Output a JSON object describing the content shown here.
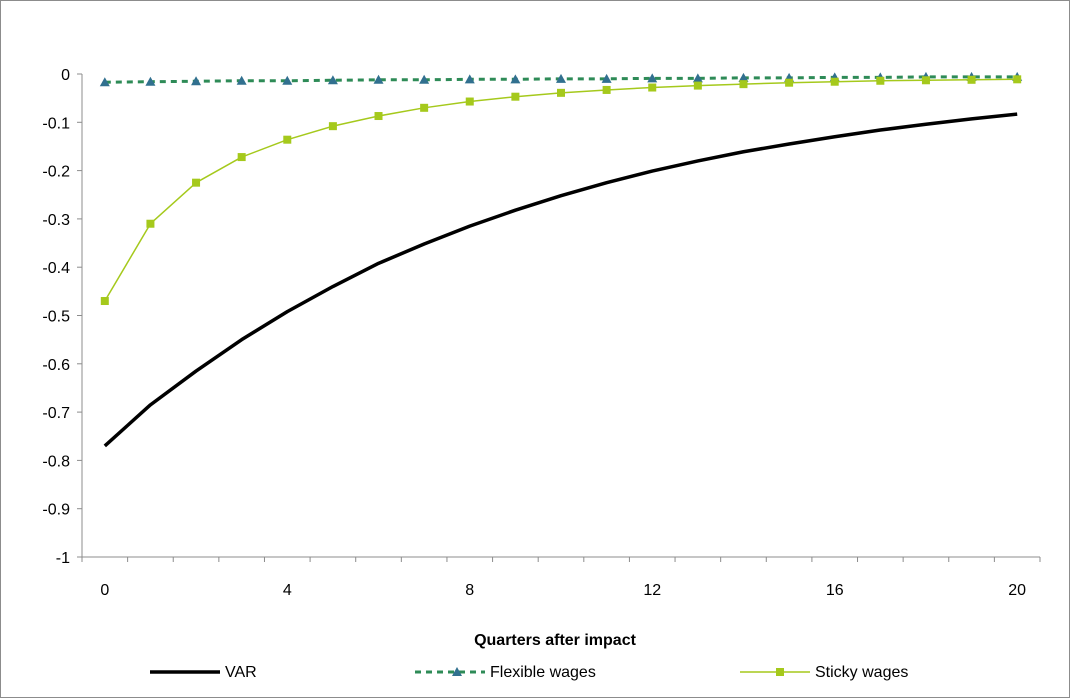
{
  "chart_data": {
    "type": "line",
    "title": "",
    "xlabel": "Quarters after impact",
    "ylabel": "",
    "x": [
      0,
      1,
      2,
      3,
      4,
      5,
      6,
      7,
      8,
      9,
      10,
      11,
      12,
      13,
      14,
      15,
      16,
      17,
      18,
      19,
      20
    ],
    "xticks": [
      0,
      4,
      8,
      12,
      16,
      20
    ],
    "xlim": [
      0,
      20
    ],
    "ylim": [
      -1,
      0
    ],
    "yticks": [
      0,
      -0.1,
      -0.2,
      -0.3,
      -0.4,
      -0.5,
      -0.6,
      -0.7,
      -0.8,
      -0.9,
      -1
    ],
    "ytick_labels": [
      "0",
      "-0.1",
      "-0.2",
      "-0.3",
      "-0.4",
      "-0.5",
      "-0.6",
      "-0.7",
      "-0.8",
      "-0.9",
      "-1"
    ],
    "grid": false,
    "legend_position": "bottom",
    "series": [
      {
        "name": "VAR",
        "color": "#000000",
        "style": "solid-thick",
        "marker": "none",
        "values": [
          -0.77,
          -0.685,
          -0.615,
          -0.55,
          -0.492,
          -0.44,
          -0.392,
          -0.352,
          -0.315,
          -0.282,
          -0.252,
          -0.225,
          -0.201,
          -0.18,
          -0.161,
          -0.145,
          -0.13,
          -0.116,
          -0.104,
          -0.093,
          -0.083
        ]
      },
      {
        "name": "Flexible wages",
        "color": "#2e8b57",
        "marker_color": "#31708f",
        "style": "dashed",
        "marker": "triangle",
        "values": [
          -0.017,
          -0.016,
          -0.015,
          -0.014,
          -0.014,
          -0.013,
          -0.012,
          -0.012,
          -0.011,
          -0.011,
          -0.01,
          -0.01,
          -0.009,
          -0.009,
          -0.008,
          -0.008,
          -0.007,
          -0.007,
          -0.006,
          -0.006,
          -0.006
        ]
      },
      {
        "name": "Sticky wages",
        "color": "#a5c91c",
        "marker_color": "#a5c91c",
        "style": "solid-thin",
        "marker": "square",
        "values": [
          -0.47,
          -0.31,
          -0.225,
          -0.172,
          -0.136,
          -0.108,
          -0.087,
          -0.07,
          -0.057,
          -0.047,
          -0.039,
          -0.033,
          -0.028,
          -0.024,
          -0.021,
          -0.018,
          -0.016,
          -0.014,
          -0.013,
          -0.012,
          -0.011
        ]
      }
    ]
  }
}
